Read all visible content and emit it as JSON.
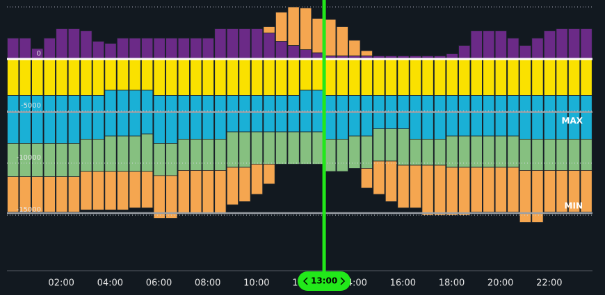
{
  "chart_data": {
    "type": "stacked_bar",
    "x": [
      0,
      0.5,
      1,
      1.5,
      2,
      2.5,
      3,
      3.5,
      4,
      4.5,
      5,
      5.5,
      6,
      6.5,
      7,
      7.5,
      8,
      8.5,
      9,
      9.5,
      10,
      10.5,
      11,
      11.5,
      12,
      12.5,
      13,
      13.5,
      14,
      14.5,
      15,
      15.5,
      16,
      16.5,
      17,
      17.5,
      18,
      18.5,
      19,
      19.5,
      20,
      20.5,
      21,
      21.5,
      22,
      22.5,
      23,
      23.5
    ],
    "bar_width": 0.5,
    "series": [
      {
        "color": "#6b2a87",
        "values": [
          2000,
          2000,
          1000,
          2000,
          2900,
          2900,
          2700,
          1700,
          1500,
          2000,
          2000,
          2000,
          2000,
          2000,
          2000,
          2000,
          2000,
          2900,
          2900,
          2900,
          2900,
          2500,
          1700,
          1300,
          900,
          600,
          300,
          300,
          300,
          300,
          300,
          300,
          300,
          300,
          300,
          300,
          500,
          1300,
          2700,
          2700,
          2700,
          2000,
          1300,
          2000,
          2700,
          2900,
          2900,
          2900
        ]
      },
      {
        "color": "#f5a650",
        "values": [
          0,
          0,
          0,
          0,
          0,
          0,
          0,
          0,
          0,
          0,
          0,
          0,
          0,
          0,
          0,
          0,
          0,
          0,
          0,
          0,
          0,
          600,
          2800,
          3700,
          4000,
          3300,
          3500,
          2800,
          1500,
          500,
          0,
          0,
          0,
          0,
          0,
          0,
          0,
          0,
          0,
          0,
          0,
          0,
          0,
          0,
          0,
          0,
          0,
          0
        ]
      },
      {
        "color": "#fae100",
        "values": [
          -3500,
          -3500,
          -3500,
          -3500,
          -3500,
          -3500,
          -3500,
          -3500,
          -3000,
          -3000,
          -3000,
          -3000,
          -3500,
          -3500,
          -3500,
          -3500,
          -3500,
          -3500,
          -3500,
          -3500,
          -3500,
          -3500,
          -3500,
          -3500,
          -3000,
          -3000,
          -3500,
          -3500,
          -3500,
          -3500,
          -3500,
          -3500,
          -3500,
          -3500,
          -3500,
          -3500,
          -3500,
          -3500,
          -3500,
          -3500,
          -3500,
          -3500,
          -3500,
          -3500,
          -3500,
          -3500,
          -3500,
          -3500
        ]
      },
      {
        "color": "#1ab0d6",
        "values": [
          -4600,
          -4600,
          -4600,
          -4600,
          -4600,
          -4600,
          -4200,
          -4200,
          -4400,
          -4400,
          -4400,
          -4200,
          -4600,
          -4600,
          -4200,
          -4200,
          -4200,
          -4200,
          -3500,
          -3500,
          -3500,
          -3500,
          -3500,
          -3500,
          -4000,
          -4000,
          -4200,
          -4200,
          -3900,
          -3900,
          -3200,
          -3200,
          -3200,
          -4200,
          -4200,
          -4200,
          -3900,
          -3900,
          -3900,
          -3900,
          -3900,
          -3900,
          -4200,
          -4200,
          -4200,
          -4200,
          -4200,
          -4200
        ]
      },
      {
        "color": "#86c080",
        "values": [
          -3200,
          -3200,
          -3200,
          -3200,
          -3200,
          -3200,
          -3100,
          -3100,
          -3400,
          -3400,
          -3400,
          -3600,
          -3100,
          -3100,
          -3000,
          -3000,
          -3000,
          -3000,
          -3400,
          -3400,
          -3100,
          -3100,
          -3100,
          -3100,
          -3100,
          -3100,
          -3100,
          -3100,
          -3100,
          -3100,
          -3100,
          -3100,
          -3500,
          -2500,
          -2500,
          -2500,
          -3000,
          -3000,
          -3000,
          -3000,
          -3000,
          -3000,
          -3000,
          -3000,
          -3000,
          -3000,
          -3000,
          -3000
        ]
      },
      {
        "color": "#f5a650",
        "values": [
          -3400,
          -3400,
          -3400,
          -3400,
          -3400,
          -3400,
          -3700,
          -3700,
          -3700,
          -3700,
          -3500,
          -3500,
          -4100,
          -4100,
          -4200,
          -4200,
          -4200,
          -4200,
          -3600,
          -3300,
          -2900,
          -1900,
          0,
          0,
          0,
          0,
          0,
          0,
          0,
          -1900,
          -3200,
          -3900,
          -4100,
          -4100,
          -4800,
          -4800,
          -4600,
          -4600,
          -4300,
          -4300,
          -4300,
          -4300,
          -5000,
          -5000,
          -4000,
          -4000,
          -4000,
          -4000
        ]
      }
    ],
    "xlim": [
      0,
      24
    ],
    "xticks": [
      {
        "value": 2,
        "label": "02:00"
      },
      {
        "value": 4,
        "label": "04:00"
      },
      {
        "value": 6,
        "label": "06:00"
      },
      {
        "value": 8,
        "label": "08:00"
      },
      {
        "value": 10,
        "label": "10:00"
      },
      {
        "value": 12,
        "label": "12:00"
      },
      {
        "value": 14,
        "label": "14:00"
      },
      {
        "value": 16,
        "label": "16:00"
      },
      {
        "value": 18,
        "label": "18:00"
      },
      {
        "value": 20,
        "label": "20:00"
      },
      {
        "value": 22,
        "label": "22:00"
      }
    ],
    "ylim": [
      -20000,
      5000
    ],
    "yticks": [
      0,
      -5000,
      -10000,
      -15000
    ],
    "reference_lines": [
      {
        "label": "MAX",
        "value": -5100
      },
      {
        "label": "MIN",
        "value": -14800
      }
    ],
    "cursor": {
      "value": 13,
      "label": "13:00"
    }
  }
}
